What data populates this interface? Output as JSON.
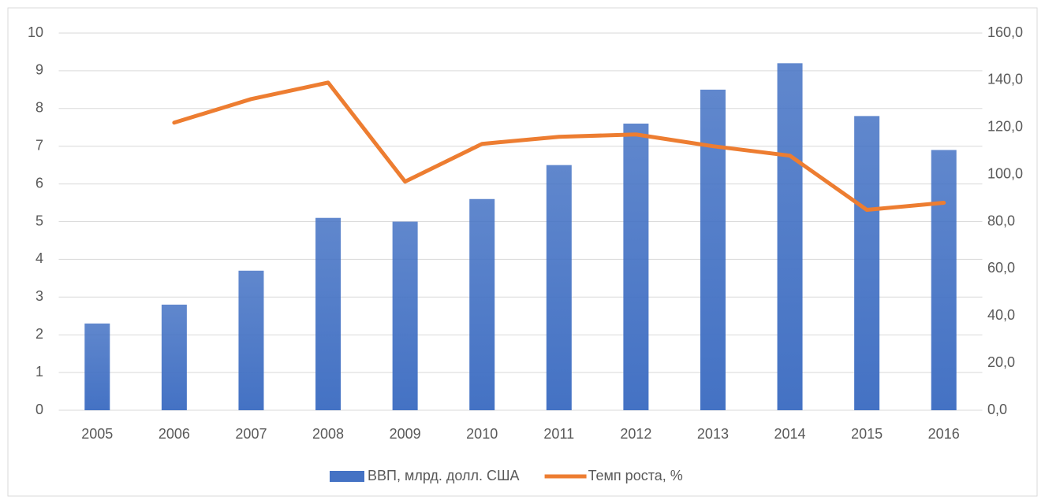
{
  "chart_data": {
    "type": "bar",
    "categories": [
      "2005",
      "2006",
      "2007",
      "2008",
      "2009",
      "2010",
      "2011",
      "2012",
      "2013",
      "2014",
      "2015",
      "2016"
    ],
    "series": [
      {
        "name": "ВВП, млрд. долл. США",
        "type": "bar",
        "color": "#4472c4",
        "values": [
          2.3,
          2.8,
          3.7,
          5.1,
          5.0,
          5.6,
          6.5,
          7.6,
          8.5,
          9.2,
          7.8,
          6.9
        ]
      },
      {
        "name": "Темп роста, %",
        "type": "line",
        "axis": "y2",
        "color": "#ed7d31",
        "values": [
          null,
          122,
          132,
          139,
          97,
          113,
          116,
          117,
          112,
          108,
          85,
          88
        ]
      }
    ],
    "ylim": [
      0,
      10
    ],
    "yticks": [
      0,
      1,
      2,
      3,
      4,
      5,
      6,
      7,
      8,
      9,
      10
    ],
    "y2lim": [
      0,
      160
    ],
    "y2ticks": [
      {
        "value": 0,
        "label": "0,0"
      },
      {
        "value": 20,
        "label": "20,0"
      },
      {
        "value": 40,
        "label": "40,0"
      },
      {
        "value": 60,
        "label": "60,0"
      },
      {
        "value": 80,
        "label": "80,0"
      },
      {
        "value": 100,
        "label": "100,0"
      },
      {
        "value": 120,
        "label": "120,0"
      },
      {
        "value": 140,
        "label": "140,0"
      },
      {
        "value": 160,
        "label": "160,0"
      }
    ],
    "grid": true,
    "legend": "bottom"
  }
}
